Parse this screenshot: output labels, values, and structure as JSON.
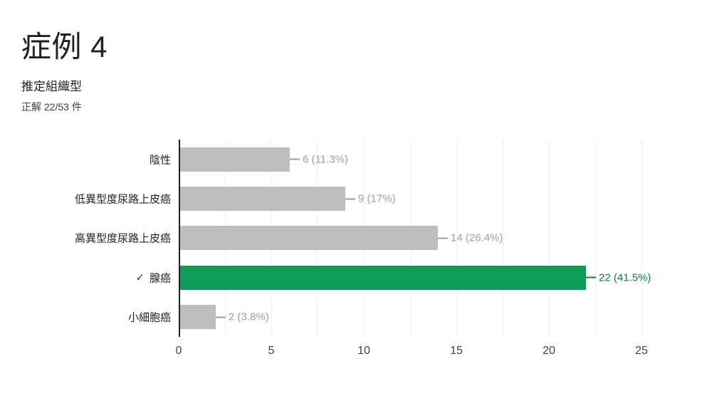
{
  "header": {
    "title": "症例 4"
  },
  "question": {
    "title": "推定組織型",
    "correct_summary": "正解 22/53 件"
  },
  "chart_data": {
    "type": "bar",
    "orientation": "horizontal",
    "title": "推定組織型",
    "categories": [
      "陰性",
      "低異型度尿路上皮癌",
      "高異型度尿路上皮癌",
      "腺癌",
      "小細胞癌"
    ],
    "values": [
      6,
      9,
      14,
      22,
      2
    ],
    "annotations": [
      "6 (11.3%)",
      "9 (17%)",
      "14 (26.4%)",
      "22 (41.5%)",
      "2 (3.8%)"
    ],
    "correct_index": 3,
    "check_glyph": "✓",
    "xlabel": "",
    "ylabel": "",
    "xlim": [
      0,
      25
    ],
    "x_ticks": [
      "0",
      "5",
      "10",
      "15",
      "20",
      "25"
    ],
    "x_tick_values": [
      0,
      5,
      10,
      15,
      20,
      25
    ],
    "gridline_step": 2.5,
    "grid": true,
    "legend": false,
    "colors": {
      "bar_default": "#bdbdbd",
      "bar_correct": "#109d58",
      "annotation_default": "#9e9e9e",
      "annotation_correct": "#0b8043",
      "axis_line": "#212121",
      "gridline": "#f0f0f0"
    }
  }
}
